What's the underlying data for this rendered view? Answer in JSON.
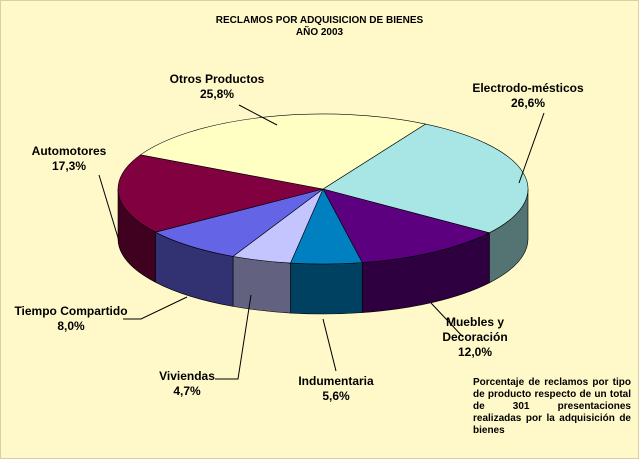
{
  "chart_data": {
    "type": "pie",
    "title": "RECLAMOS POR ADQUISICION DE BIENES",
    "subtitle": "AÑO 2003",
    "categories": [
      "Electrodo-mésticos",
      "Muebles y Decoración",
      "Indumentaria",
      "Viviendas",
      "Tiempo Compartido",
      "Automotores",
      "Otros Productos"
    ],
    "values": [
      26.6,
      12.0,
      5.6,
      4.7,
      8.0,
      17.3,
      25.8
    ],
    "value_labels": [
      "26,6%",
      "12,0%",
      "5,6%",
      "4,7%",
      "8,0%",
      "17,3%",
      "25,8%"
    ],
    "colors": [
      "#a8e6e6",
      "#5c0080",
      "#0080c0",
      "#c4c4ff",
      "#6464e6",
      "#800040",
      "#ffffc4"
    ],
    "annotation": "Porcentaje de reclamos por tipo de producto respecto de un total de 301 presentaciones realizadas por la adquisición de bienes"
  }
}
